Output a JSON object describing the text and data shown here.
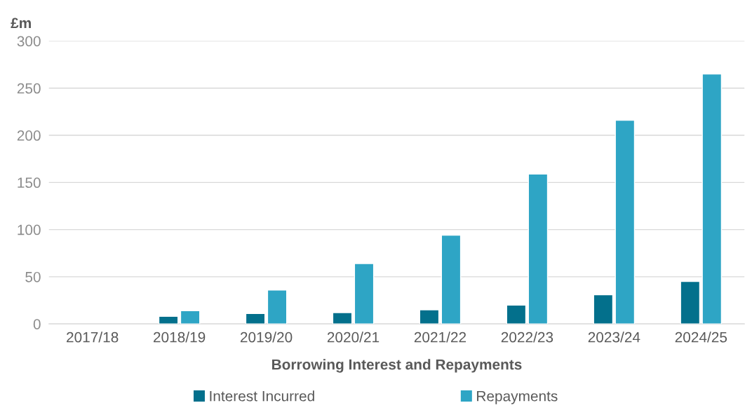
{
  "chart_data": {
    "type": "bar",
    "xlabel": "Borrowing Interest and Repayments",
    "ylabel": "£m",
    "categories": [
      "2017/18",
      "2018/19",
      "2019/20",
      "2020/21",
      "2021/22",
      "2022/23",
      "2023/24",
      "2024/25"
    ],
    "series": [
      {
        "name": "Interest Incurred",
        "color": "#03708c",
        "values": [
          null,
          8,
          11,
          12,
          15,
          20,
          31,
          45
        ]
      },
      {
        "name": "Repayments",
        "color": "#2ea5c5",
        "values": [
          null,
          14,
          36,
          64,
          94,
          159,
          216,
          265
        ]
      }
    ],
    "ylim": [
      0,
      300
    ],
    "yticks": [
      0,
      50,
      100,
      150,
      200,
      250,
      300
    ],
    "grid": "y",
    "legend": "bottom"
  }
}
